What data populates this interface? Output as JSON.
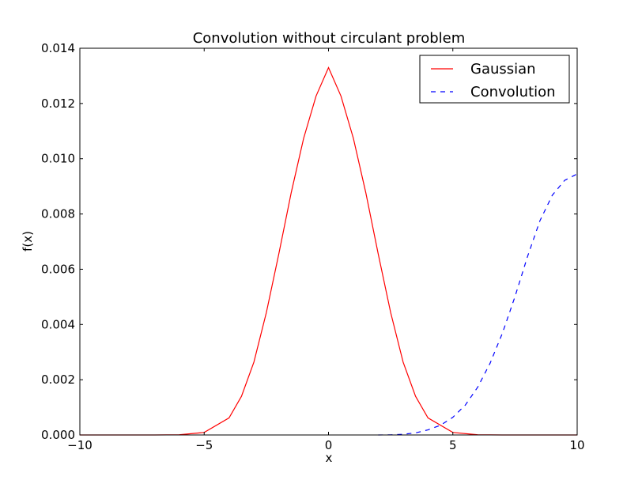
{
  "chart_data": {
    "type": "line",
    "title": "Convolution without circulant problem",
    "xlabel": "x",
    "ylabel": "f(x)",
    "xlim": [
      -10,
      10
    ],
    "ylim": [
      0,
      0.014
    ],
    "grid": false,
    "legend_position": "top-right",
    "x_ticks": [
      -10,
      -5,
      0,
      5,
      10
    ],
    "x_tick_labels": [
      "−10",
      "−5",
      "0",
      "5",
      "10"
    ],
    "y_ticks": [
      0,
      0.002,
      0.004,
      0.006,
      0.008,
      0.01,
      0.012,
      0.014
    ],
    "y_tick_labels": [
      "0.000",
      "0.002",
      "0.004",
      "0.006",
      "0.008",
      "0.010",
      "0.012",
      "0.014"
    ],
    "series": [
      {
        "name": "Gaussian",
        "color": "#ff0000",
        "style": "solid",
        "points": [
          [
            -10,
            0
          ],
          [
            -8,
            0
          ],
          [
            -7,
            2e-07
          ],
          [
            -6,
            7e-06
          ],
          [
            -5,
            9.2e-05
          ],
          [
            -4,
            0.000618
          ],
          [
            -3.5,
            0.0014
          ],
          [
            -3,
            0.00264
          ],
          [
            -2.5,
            0.00443
          ],
          [
            -2,
            0.00655
          ],
          [
            -1.5,
            0.00877
          ],
          [
            -1,
            0.01074
          ],
          [
            -0.5,
            0.01227
          ],
          [
            0,
            0.0133
          ],
          [
            0.5,
            0.01227
          ],
          [
            1,
            0.01074
          ],
          [
            1.5,
            0.00877
          ],
          [
            2,
            0.00655
          ],
          [
            2.5,
            0.00443
          ],
          [
            3,
            0.00264
          ],
          [
            3.5,
            0.0014
          ],
          [
            4,
            0.000618
          ],
          [
            5,
            9.2e-05
          ],
          [
            6,
            7e-06
          ],
          [
            7,
            2e-07
          ],
          [
            8,
            0
          ],
          [
            10,
            0
          ]
        ]
      },
      {
        "name": "Convolution",
        "color": "#0000ff",
        "style": "dashed",
        "points": [
          [
            2,
            0
          ],
          [
            2.5,
            5e-06
          ],
          [
            3,
            2.5e-05
          ],
          [
            3.5,
            7.5e-05
          ],
          [
            4,
            0.000185
          ],
          [
            4.5,
            0.00035
          ],
          [
            5,
            0.00064
          ],
          [
            5.5,
            0.00108
          ],
          [
            6,
            0.00173
          ],
          [
            6.5,
            0.0026
          ],
          [
            7,
            0.0037
          ],
          [
            7.5,
            0.00501
          ],
          [
            8,
            0.00645
          ],
          [
            8.5,
            0.00775
          ],
          [
            9,
            0.00868
          ],
          [
            9.5,
            0.00922
          ],
          [
            10,
            0.00945
          ]
        ]
      }
    ]
  }
}
